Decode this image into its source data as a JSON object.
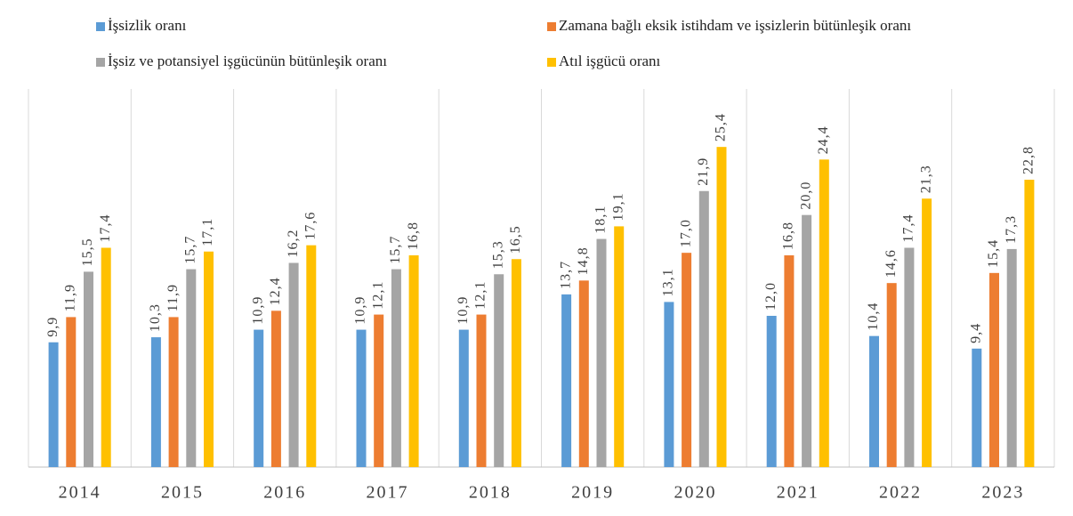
{
  "chart_data": {
    "type": "bar",
    "categories": [
      "2014",
      "2015",
      "2016",
      "2017",
      "2018",
      "2019",
      "2020",
      "2021",
      "2022",
      "2023"
    ],
    "series": [
      {
        "name": "İşsizlik oranı",
        "color": "#5b9bd5",
        "values": [
          9.9,
          10.3,
          10.9,
          10.9,
          10.9,
          13.7,
          13.1,
          12.0,
          10.4,
          9.4
        ],
        "value_labels": [
          "9,9",
          "10,3",
          "10,9",
          "10,9",
          "10,9",
          "13,7",
          "13,1",
          "12,0",
          "10,4",
          "9,4"
        ]
      },
      {
        "name": "Zamana bağlı eksik istihdam ve işsizlerin bütünleşik oranı",
        "color": "#ed7d31",
        "values": [
          11.9,
          11.9,
          12.4,
          12.1,
          12.1,
          14.8,
          17.0,
          16.8,
          14.6,
          15.4
        ],
        "value_labels": [
          "11,9",
          "11,9",
          "12,4",
          "12,1",
          "12,1",
          "14,8",
          "17,0",
          "16,8",
          "14,6",
          "15,4"
        ]
      },
      {
        "name": "İşsiz ve potansiyel işgücünün bütünleşik oranı",
        "color": "#a5a5a5",
        "values": [
          15.5,
          15.7,
          16.2,
          15.7,
          15.3,
          18.1,
          21.9,
          20.0,
          17.4,
          17.3
        ],
        "value_labels": [
          "15,5",
          "15,7",
          "16,2",
          "15,7",
          "15,3",
          "18,1",
          "21,9",
          "20,0",
          "17,4",
          "17,3"
        ]
      },
      {
        "name": "Atıl işgücü oranı",
        "color": "#ffc000",
        "values": [
          17.4,
          17.1,
          17.6,
          16.8,
          16.5,
          19.1,
          25.4,
          24.4,
          21.3,
          22.8
        ],
        "value_labels": [
          "17,4",
          "17,1",
          "17,6",
          "16,8",
          "16,5",
          "19,1",
          "25,4",
          "24,4",
          "21,3",
          "22,8"
        ]
      }
    ],
    "ylim": [
      0,
      30
    ]
  }
}
